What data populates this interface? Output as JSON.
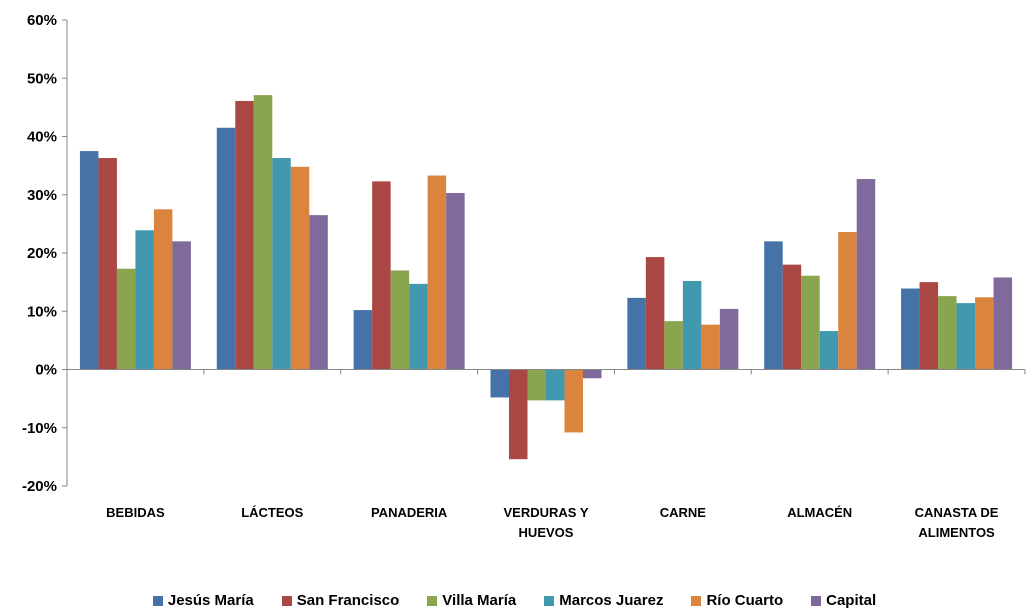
{
  "chart_data": {
    "type": "bar",
    "title": "",
    "xlabel": "",
    "ylabel": "",
    "ylim": [
      -0.2,
      0.6
    ],
    "yticks": [
      -0.2,
      -0.1,
      0,
      0.1,
      0.2,
      0.3,
      0.4,
      0.5,
      0.6
    ],
    "ytick_labels": [
      "-20%",
      "-10%",
      "0%",
      "10%",
      "20%",
      "30%",
      "40%",
      "50%",
      "60%"
    ],
    "grid": false,
    "legend_position": "bottom",
    "categories": [
      [
        "BEBIDAS"
      ],
      [
        "LÁCTEOS"
      ],
      [
        "PANADERIA"
      ],
      [
        "VERDURAS Y",
        "HUEVOS"
      ],
      [
        "CARNE"
      ],
      [
        "ALMACÉN"
      ],
      [
        "CANASTA DE",
        "ALIMENTOS"
      ]
    ],
    "series": [
      {
        "name": "Jesús María",
        "color": "#4572A7",
        "values": [
          0.375,
          0.415,
          0.102,
          -0.048,
          0.123,
          0.22,
          0.139
        ]
      },
      {
        "name": "San Francisco",
        "color": "#AA4643",
        "values": [
          0.363,
          0.461,
          0.323,
          -0.154,
          0.193,
          0.18,
          0.15
        ]
      },
      {
        "name": "Villa María",
        "color": "#89A54E",
        "values": [
          0.173,
          0.471,
          0.17,
          -0.053,
          0.083,
          0.161,
          0.126
        ]
      },
      {
        "name": "Marcos Juarez",
        "color": "#4198AF",
        "values": [
          0.239,
          0.363,
          0.147,
          -0.053,
          0.152,
          0.066,
          0.114
        ]
      },
      {
        "name": "Río Cuarto",
        "color": "#DB843D",
        "values": [
          0.275,
          0.348,
          0.333,
          -0.108,
          0.077,
          0.236,
          0.124
        ]
      },
      {
        "name": "Capital",
        "color": "#80699B",
        "values": [
          0.22,
          0.265,
          0.303,
          -0.015,
          0.104,
          0.327,
          0.158
        ]
      }
    ]
  }
}
